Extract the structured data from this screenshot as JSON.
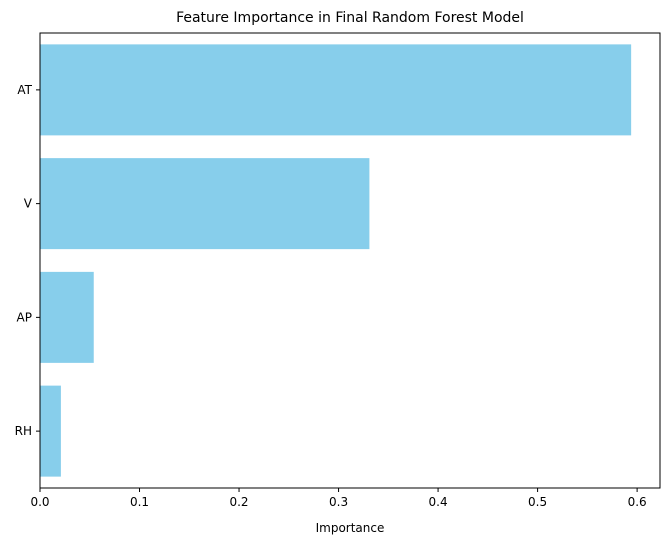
{
  "chart_data": {
    "type": "bar",
    "orientation": "horizontal",
    "title": "Feature Importance in Final Random Forest Model",
    "xlabel": "Importance",
    "ylabel": "",
    "categories": [
      "AT",
      "V",
      "AP",
      "RH"
    ],
    "values": [
      0.594,
      0.331,
      0.054,
      0.021
    ],
    "xlim": [
      0,
      0.623
    ],
    "xticks": [
      "0.0",
      "0.1",
      "0.2",
      "0.3",
      "0.4",
      "0.5",
      "0.6"
    ],
    "bar_color": "#87ceeb",
    "grid": false
  }
}
